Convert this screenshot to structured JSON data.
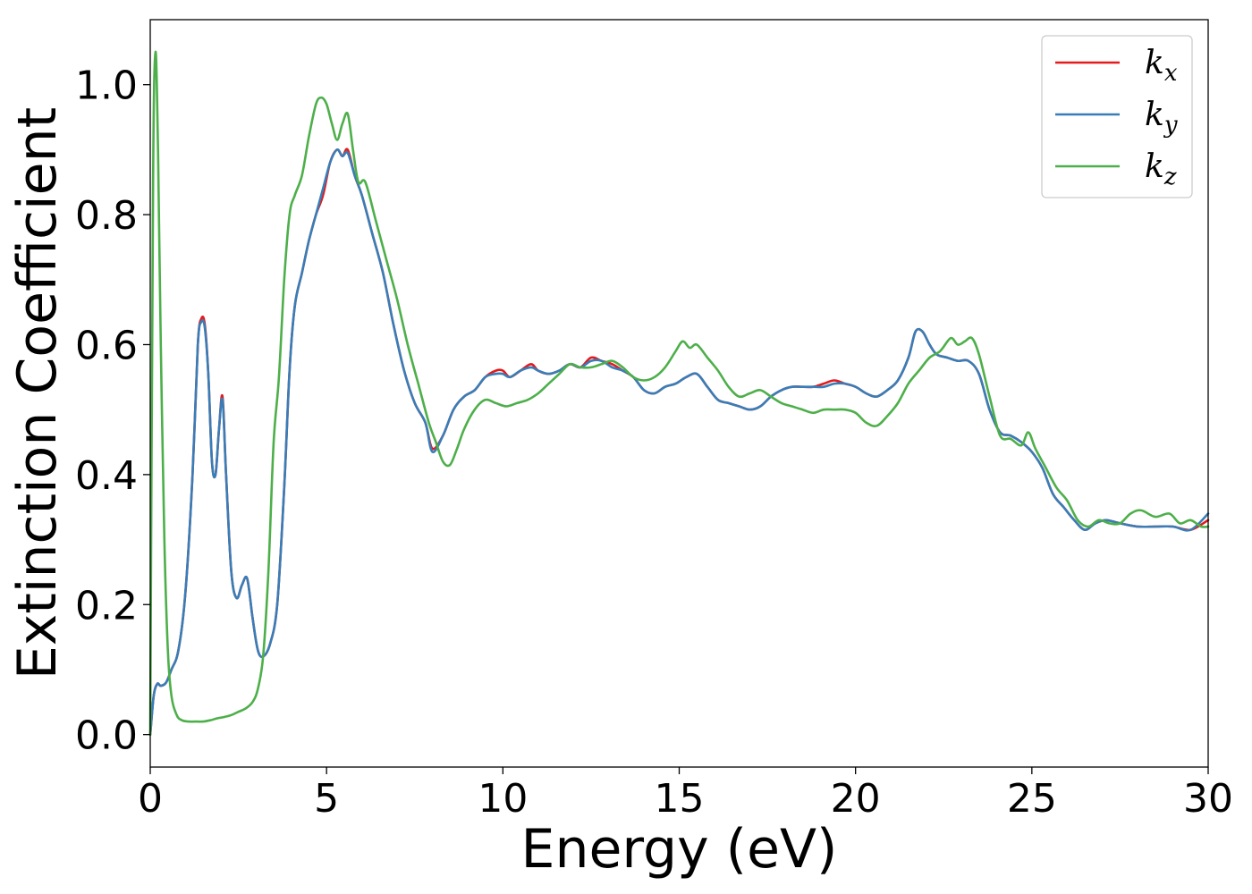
{
  "chart_data": {
    "type": "line",
    "xlabel": "Energy (eV)",
    "ylabel": "Extinction Coefficient",
    "xlim": [
      0,
      30
    ],
    "ylim": [
      -0.05,
      1.1
    ],
    "xticks": [
      0,
      5,
      10,
      15,
      20,
      25,
      30
    ],
    "yticks": [
      0.0,
      0.2,
      0.4,
      0.6,
      0.8,
      1.0
    ],
    "xtick_labels": [
      "0",
      "5",
      "10",
      "15",
      "20",
      "25",
      "30"
    ],
    "ytick_labels": [
      "0.0",
      "0.2",
      "0.4",
      "0.6",
      "0.8",
      "1.0"
    ],
    "grid": false,
    "legend_position": "top-right",
    "series": [
      {
        "name": "k",
        "subscript": "x",
        "color": "#e41a1c",
        "x": [
          0,
          0.1,
          0.2,
          0.3,
          0.45,
          0.6,
          0.8,
          1.0,
          1.2,
          1.35,
          1.45,
          1.55,
          1.65,
          1.75,
          1.85,
          1.95,
          2.05,
          2.15,
          2.3,
          2.45,
          2.6,
          2.75,
          2.9,
          3.05,
          3.2,
          3.4,
          3.6,
          3.8,
          3.95,
          4.1,
          4.3,
          4.5,
          4.7,
          4.9,
          5.1,
          5.3,
          5.45,
          5.6,
          5.8,
          6.0,
          6.3,
          6.6,
          6.9,
          7.2,
          7.5,
          7.8,
          8.0,
          8.3,
          8.6,
          8.9,
          9.2,
          9.5,
          9.8,
          10.0,
          10.2,
          10.5,
          10.8,
          11.0,
          11.3,
          11.6,
          11.9,
          12.2,
          12.5,
          12.8,
          13.1,
          13.4,
          13.7,
          14.0,
          14.3,
          14.6,
          14.9,
          15.2,
          15.5,
          15.8,
          16.1,
          16.4,
          16.7,
          17.0,
          17.3,
          17.6,
          17.9,
          18.2,
          18.5,
          18.8,
          19.1,
          19.4,
          19.7,
          20.0,
          20.3,
          20.6,
          20.9,
          21.2,
          21.5,
          21.7,
          21.9,
          22.1,
          22.3,
          22.6,
          22.9,
          23.2,
          23.5,
          23.8,
          24.1,
          24.4,
          24.7,
          25.0,
          25.3,
          25.6,
          25.9,
          26.2,
          26.5,
          26.8,
          27.1,
          27.5,
          28.0,
          28.5,
          29.0,
          29.5,
          30.0
        ],
        "y": [
          0.0,
          0.06,
          0.078,
          0.075,
          0.08,
          0.1,
          0.13,
          0.22,
          0.4,
          0.6,
          0.64,
          0.63,
          0.55,
          0.42,
          0.4,
          0.47,
          0.52,
          0.4,
          0.25,
          0.21,
          0.23,
          0.24,
          0.18,
          0.13,
          0.12,
          0.14,
          0.2,
          0.38,
          0.56,
          0.66,
          0.71,
          0.76,
          0.8,
          0.83,
          0.88,
          0.9,
          0.89,
          0.9,
          0.86,
          0.83,
          0.77,
          0.71,
          0.63,
          0.56,
          0.51,
          0.48,
          0.44,
          0.46,
          0.5,
          0.52,
          0.53,
          0.55,
          0.56,
          0.56,
          0.55,
          0.56,
          0.57,
          0.56,
          0.555,
          0.56,
          0.57,
          0.565,
          0.58,
          0.575,
          0.57,
          0.56,
          0.55,
          0.53,
          0.525,
          0.535,
          0.54,
          0.55,
          0.555,
          0.535,
          0.515,
          0.51,
          0.505,
          0.5,
          0.505,
          0.52,
          0.53,
          0.535,
          0.535,
          0.535,
          0.54,
          0.545,
          0.54,
          0.535,
          0.525,
          0.52,
          0.53,
          0.545,
          0.58,
          0.62,
          0.62,
          0.6,
          0.585,
          0.58,
          0.575,
          0.575,
          0.555,
          0.5,
          0.465,
          0.46,
          0.45,
          0.435,
          0.41,
          0.37,
          0.35,
          0.33,
          0.315,
          0.325,
          0.33,
          0.325,
          0.32,
          0.32,
          0.32,
          0.315,
          0.33
        ]
      },
      {
        "name": "k",
        "subscript": "y",
        "color": "#377eb8",
        "x": [
          0,
          0.1,
          0.2,
          0.3,
          0.45,
          0.6,
          0.8,
          1.0,
          1.2,
          1.35,
          1.45,
          1.55,
          1.65,
          1.75,
          1.85,
          1.95,
          2.05,
          2.15,
          2.3,
          2.45,
          2.6,
          2.75,
          2.9,
          3.05,
          3.2,
          3.4,
          3.6,
          3.8,
          3.95,
          4.1,
          4.3,
          4.5,
          4.7,
          4.9,
          5.1,
          5.3,
          5.45,
          5.6,
          5.8,
          6.0,
          6.3,
          6.6,
          6.9,
          7.2,
          7.5,
          7.8,
          8.0,
          8.3,
          8.6,
          8.9,
          9.2,
          9.5,
          9.8,
          10.0,
          10.2,
          10.5,
          10.8,
          11.0,
          11.3,
          11.6,
          11.9,
          12.2,
          12.5,
          12.8,
          13.1,
          13.4,
          13.7,
          14.0,
          14.3,
          14.6,
          14.9,
          15.2,
          15.5,
          15.8,
          16.1,
          16.4,
          16.7,
          17.0,
          17.3,
          17.6,
          17.9,
          18.2,
          18.5,
          18.8,
          19.1,
          19.4,
          19.7,
          20.0,
          20.3,
          20.6,
          20.9,
          21.2,
          21.5,
          21.7,
          21.9,
          22.1,
          22.3,
          22.6,
          22.9,
          23.2,
          23.5,
          23.8,
          24.1,
          24.4,
          24.7,
          25.0,
          25.3,
          25.6,
          25.9,
          26.2,
          26.5,
          26.8,
          27.1,
          27.5,
          28.0,
          28.5,
          29.0,
          29.5,
          30.0
        ],
        "y": [
          0.0,
          0.06,
          0.078,
          0.075,
          0.08,
          0.1,
          0.13,
          0.22,
          0.4,
          0.6,
          0.635,
          0.625,
          0.55,
          0.42,
          0.4,
          0.47,
          0.515,
          0.4,
          0.25,
          0.21,
          0.23,
          0.24,
          0.18,
          0.13,
          0.12,
          0.14,
          0.2,
          0.38,
          0.56,
          0.66,
          0.71,
          0.76,
          0.8,
          0.84,
          0.88,
          0.9,
          0.89,
          0.895,
          0.86,
          0.83,
          0.77,
          0.71,
          0.63,
          0.56,
          0.51,
          0.48,
          0.435,
          0.46,
          0.5,
          0.52,
          0.53,
          0.55,
          0.555,
          0.555,
          0.55,
          0.56,
          0.565,
          0.56,
          0.555,
          0.56,
          0.57,
          0.565,
          0.575,
          0.575,
          0.565,
          0.56,
          0.55,
          0.53,
          0.525,
          0.535,
          0.54,
          0.55,
          0.555,
          0.535,
          0.515,
          0.51,
          0.505,
          0.5,
          0.505,
          0.52,
          0.53,
          0.535,
          0.535,
          0.535,
          0.535,
          0.54,
          0.54,
          0.535,
          0.525,
          0.52,
          0.53,
          0.545,
          0.58,
          0.62,
          0.62,
          0.6,
          0.585,
          0.58,
          0.575,
          0.575,
          0.555,
          0.5,
          0.465,
          0.46,
          0.45,
          0.435,
          0.41,
          0.37,
          0.35,
          0.33,
          0.315,
          0.325,
          0.33,
          0.325,
          0.32,
          0.32,
          0.32,
          0.315,
          0.34
        ]
      },
      {
        "name": "k",
        "subscript": "z",
        "color": "#4daf4a",
        "x": [
          0,
          0.08,
          0.15,
          0.22,
          0.3,
          0.4,
          0.5,
          0.6,
          0.75,
          0.9,
          1.1,
          1.3,
          1.5,
          1.7,
          1.9,
          2.1,
          2.3,
          2.5,
          2.7,
          2.9,
          3.05,
          3.2,
          3.35,
          3.5,
          3.65,
          3.8,
          3.95,
          4.1,
          4.3,
          4.5,
          4.7,
          4.85,
          5.0,
          5.15,
          5.3,
          5.45,
          5.6,
          5.75,
          5.9,
          6.1,
          6.4,
          6.7,
          7.0,
          7.3,
          7.6,
          7.9,
          8.1,
          8.3,
          8.5,
          8.7,
          8.9,
          9.2,
          9.5,
          9.8,
          10.1,
          10.4,
          10.7,
          11.0,
          11.3,
          11.6,
          11.9,
          12.2,
          12.5,
          12.8,
          13.1,
          13.4,
          13.7,
          14.0,
          14.3,
          14.6,
          14.9,
          15.1,
          15.3,
          15.5,
          15.8,
          16.1,
          16.4,
          16.7,
          17.0,
          17.3,
          17.6,
          17.9,
          18.2,
          18.5,
          18.8,
          19.1,
          19.4,
          19.7,
          20.0,
          20.3,
          20.6,
          20.9,
          21.2,
          21.5,
          21.8,
          22.1,
          22.4,
          22.7,
          22.9,
          23.1,
          23.3,
          23.5,
          23.8,
          24.1,
          24.4,
          24.7,
          24.9,
          25.1,
          25.4,
          25.7,
          26.0,
          26.3,
          26.6,
          26.9,
          27.2,
          27.5,
          27.8,
          28.1,
          28.5,
          28.9,
          29.2,
          29.5,
          29.8,
          30.0
        ],
        "y": [
          0.0,
          0.85,
          1.05,
          0.9,
          0.6,
          0.3,
          0.13,
          0.06,
          0.03,
          0.022,
          0.02,
          0.02,
          0.02,
          0.022,
          0.025,
          0.027,
          0.03,
          0.035,
          0.04,
          0.05,
          0.07,
          0.12,
          0.25,
          0.45,
          0.55,
          0.7,
          0.8,
          0.83,
          0.86,
          0.92,
          0.97,
          0.98,
          0.97,
          0.94,
          0.915,
          0.94,
          0.955,
          0.9,
          0.85,
          0.85,
          0.79,
          0.73,
          0.67,
          0.6,
          0.54,
          0.48,
          0.45,
          0.42,
          0.415,
          0.44,
          0.47,
          0.5,
          0.515,
          0.51,
          0.505,
          0.51,
          0.515,
          0.525,
          0.54,
          0.555,
          0.57,
          0.565,
          0.565,
          0.57,
          0.575,
          0.565,
          0.55,
          0.545,
          0.55,
          0.565,
          0.59,
          0.605,
          0.595,
          0.6,
          0.58,
          0.56,
          0.535,
          0.52,
          0.525,
          0.53,
          0.52,
          0.51,
          0.505,
          0.5,
          0.495,
          0.5,
          0.5,
          0.5,
          0.495,
          0.48,
          0.475,
          0.49,
          0.51,
          0.54,
          0.56,
          0.58,
          0.59,
          0.61,
          0.6,
          0.605,
          0.61,
          0.585,
          0.52,
          0.46,
          0.455,
          0.445,
          0.465,
          0.44,
          0.41,
          0.38,
          0.36,
          0.33,
          0.32,
          0.33,
          0.325,
          0.325,
          0.34,
          0.345,
          0.335,
          0.34,
          0.325,
          0.33,
          0.32,
          0.32
        ]
      }
    ]
  }
}
